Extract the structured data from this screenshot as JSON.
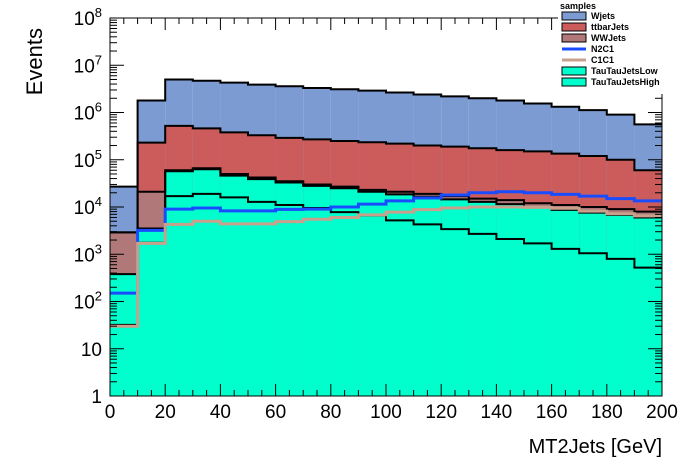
{
  "chart_data": {
    "type": "histogram-stacked",
    "xlabel": "MT2Jets [GeV]",
    "ylabel": "Events",
    "yscale": "log",
    "xlim": [
      0,
      200
    ],
    "ylim": [
      1,
      100000000
    ],
    "bin_edges": [
      0,
      10,
      20,
      30,
      40,
      50,
      60,
      70,
      80,
      90,
      100,
      110,
      120,
      130,
      140,
      150,
      160,
      170,
      180,
      190,
      200
    ],
    "x_ticks": [
      "0",
      "20",
      "40",
      "60",
      "80",
      "100",
      "120",
      "140",
      "160",
      "180",
      "200"
    ],
    "x_tick_values": [
      0,
      20,
      40,
      60,
      80,
      100,
      120,
      140,
      160,
      180,
      200
    ],
    "y_ticks": [
      {
        "value": 1,
        "base": "1",
        "exp": ""
      },
      {
        "value": 10,
        "base": "10",
        "exp": ""
      },
      {
        "value": 100,
        "base": "10",
        "exp": "2"
      },
      {
        "value": 1000,
        "base": "10",
        "exp": "3"
      },
      {
        "value": 10000,
        "base": "10",
        "exp": "4"
      },
      {
        "value": 100000,
        "base": "10",
        "exp": "5"
      },
      {
        "value": 1000000,
        "base": "10",
        "exp": "6"
      },
      {
        "value": 10000000,
        "base": "10",
        "exp": "7"
      },
      {
        "value": 100000000,
        "base": "10",
        "exp": "8"
      }
    ],
    "legend_title": "samples",
    "legend_position": "top-right",
    "stacked_series": [
      {
        "name": "TauTauJetsHigh",
        "color": "#00ffcc",
        "top_values": [
          32,
          1750,
          17000,
          19000,
          16000,
          12800,
          11000,
          9500,
          7800,
          6600,
          5200,
          4300,
          3400,
          2700,
          2100,
          1700,
          1300,
          1050,
          800,
          520
        ]
      },
      {
        "name": "TauTauJetsLow",
        "color": "#00ffcc",
        "top_values": [
          380,
          3500,
          57000,
          63000,
          46000,
          39000,
          33000,
          28000,
          25000,
          21000,
          18500,
          16500,
          14500,
          12800,
          11500,
          9800,
          8700,
          7600,
          6800,
          6000
        ]
      },
      {
        "name": "WWJets",
        "color": "#b07878",
        "top_values": [
          2900,
          21000,
          60000,
          66000,
          50000,
          42000,
          35000,
          30000,
          27000,
          23000,
          21000,
          19000,
          17000,
          15000,
          14000,
          12000,
          11000,
          10000,
          9000,
          8000
        ]
      },
      {
        "name": "ttbarJets",
        "color": "#cc5c5c",
        "top_values": [
          2900,
          230000,
          520000,
          460000,
          380000,
          330000,
          290000,
          270000,
          250000,
          235000,
          220000,
          200000,
          190000,
          175000,
          160000,
          150000,
          135000,
          120000,
          100000,
          60000
        ]
      },
      {
        "name": "Wjets",
        "color": "#7b9bd2",
        "top_values": [
          27000,
          1800000,
          5000000,
          4700000,
          4300000,
          3900000,
          3600000,
          3300000,
          3100000,
          2900000,
          2650000,
          2400000,
          2200000,
          2000000,
          1800000,
          1550000,
          1320000,
          1120000,
          900000,
          560000
        ]
      }
    ],
    "line_series": [
      {
        "name": "N2C1",
        "color": "#1a4cff",
        "values": [
          150,
          3200,
          9000,
          9500,
          8300,
          8300,
          8900,
          9000,
          10000,
          11500,
          13500,
          15500,
          18000,
          20000,
          21000,
          20000,
          18500,
          17000,
          15000,
          13500
        ]
      },
      {
        "name": "C1C1",
        "color": "#c8a08c",
        "values": [
          30,
          1700,
          4300,
          5000,
          4400,
          4400,
          4900,
          5500,
          6000,
          6800,
          7800,
          8800,
          9500,
          10000,
          10000,
          9800,
          9400,
          8200,
          7200,
          6500
        ]
      }
    ]
  },
  "legend": {
    "title": "samples",
    "entries": [
      {
        "label": "Wjets",
        "kind": "fill",
        "color": "#7b9bd2"
      },
      {
        "label": "ttbarJets",
        "kind": "fill",
        "color": "#cc5c5c"
      },
      {
        "label": "WWJets",
        "kind": "fill",
        "color": "#b07878"
      },
      {
        "label": "N2C1",
        "kind": "line",
        "color": "#1a4cff"
      },
      {
        "label": "C1C1",
        "kind": "line",
        "color": "#c8a08c"
      },
      {
        "label": "TauTauJetsLow",
        "kind": "fill",
        "color": "#00ffcc"
      },
      {
        "label": "TauTauJetsHigh",
        "kind": "fill",
        "color": "#00ffcc"
      }
    ]
  }
}
